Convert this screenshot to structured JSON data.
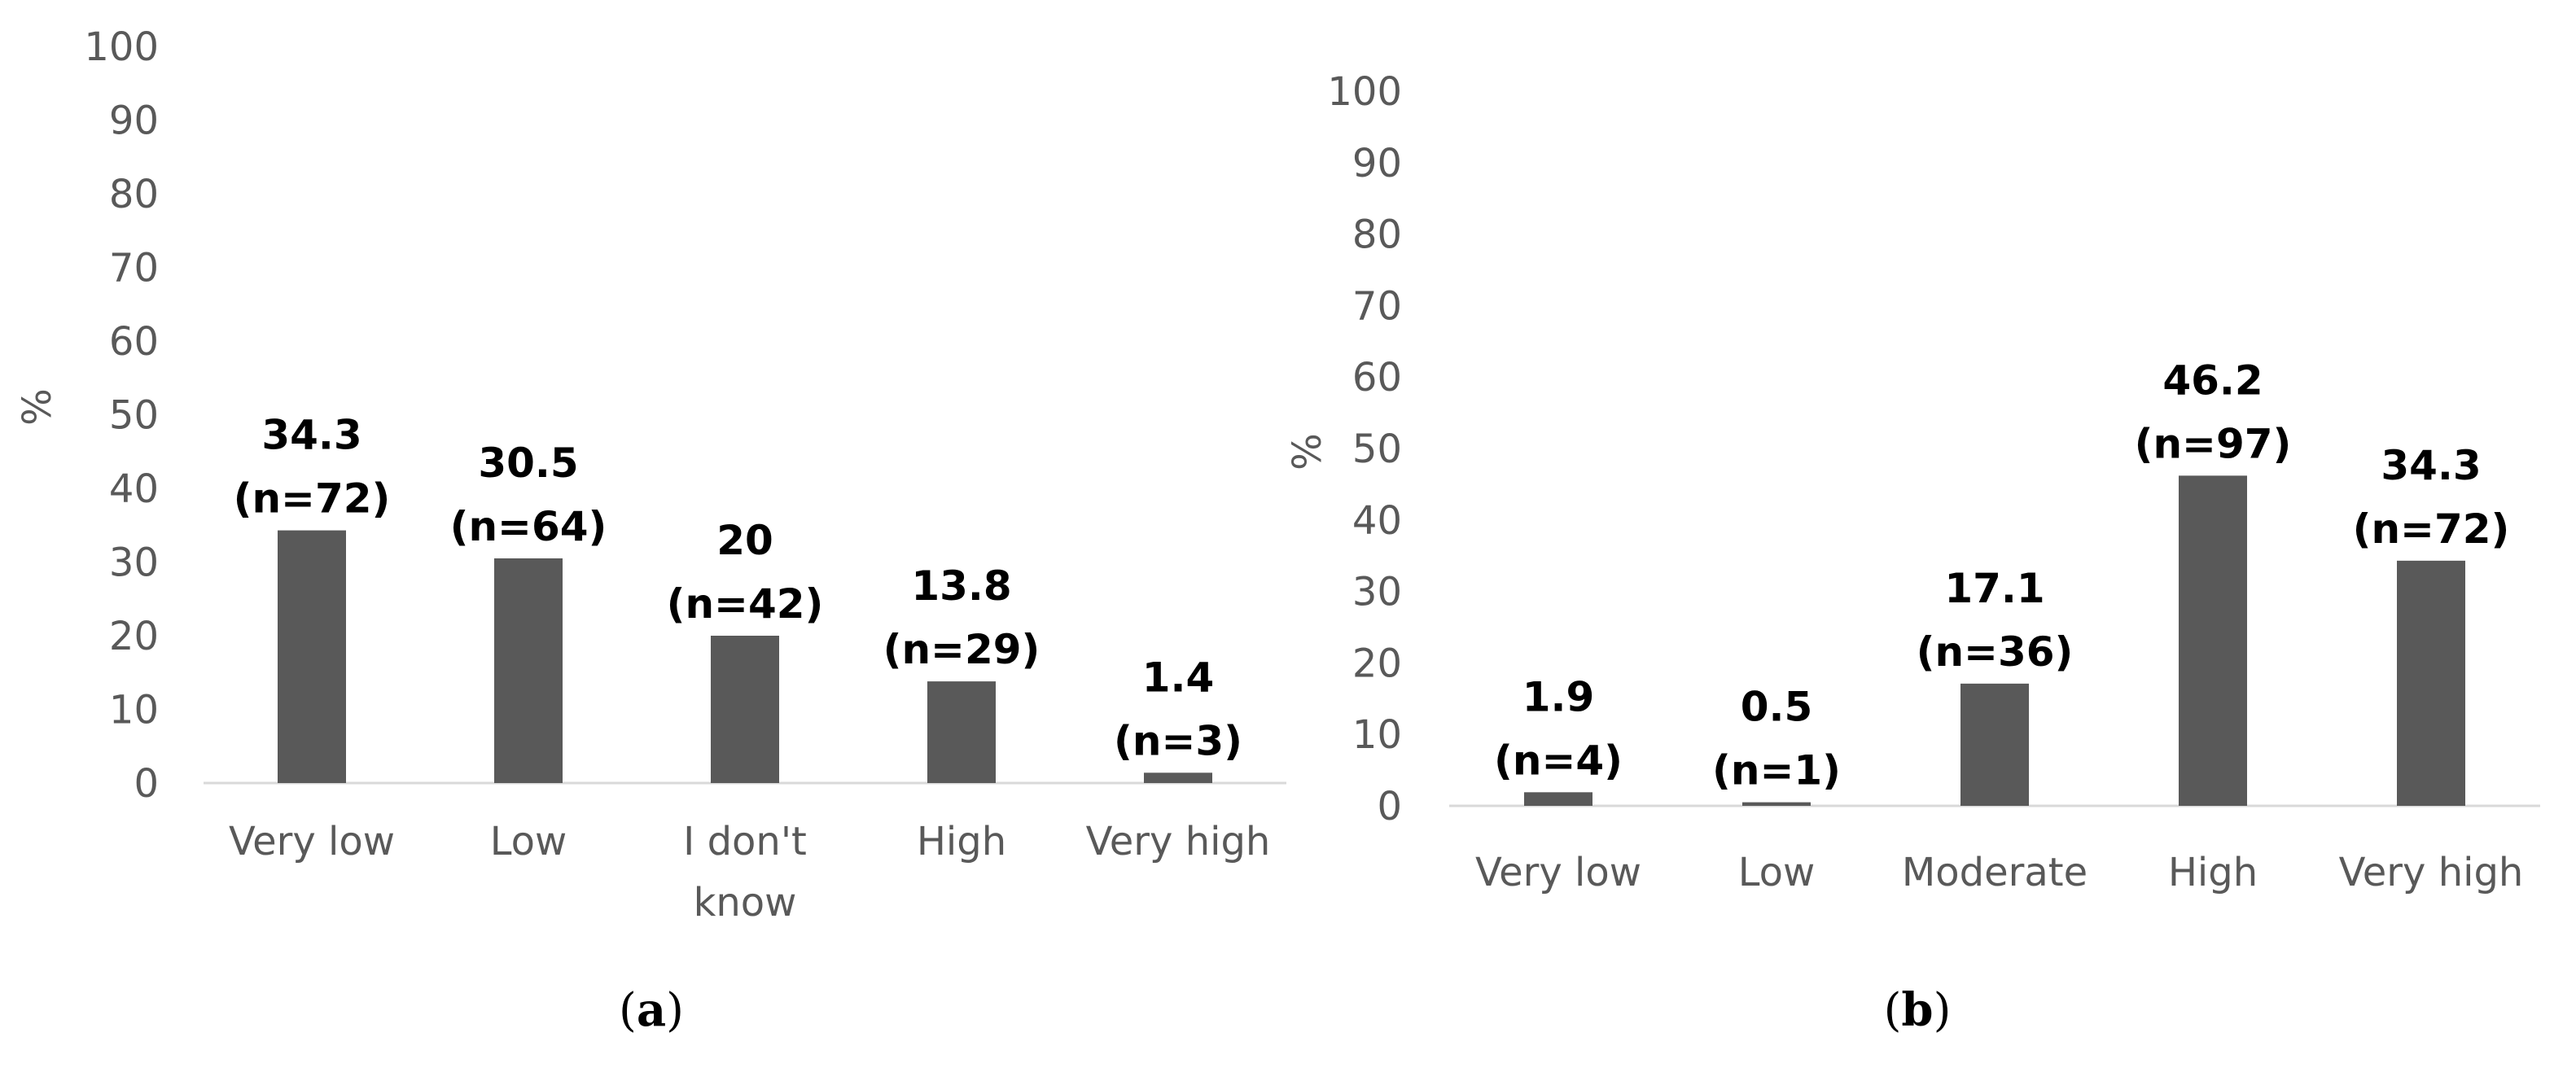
{
  "chart_data": [
    {
      "type": "bar",
      "panel_label": "a",
      "ylabel": "%",
      "ylim": [
        0,
        100
      ],
      "yticks": [
        "0",
        "10",
        "20",
        "30",
        "40",
        "50",
        "60",
        "70",
        "80",
        "90",
        "100"
      ],
      "categories": [
        "Very low",
        "Low",
        "I don't know",
        "High",
        "Very high"
      ],
      "values": [
        34.3,
        30.5,
        20,
        13.8,
        1.4
      ],
      "value_labels": [
        "34.3",
        "30.5",
        "20",
        "13.8",
        "1.4"
      ],
      "count_labels": [
        "(n=72)",
        "(n=64)",
        "(n=42)",
        "(n=29)",
        "(n=3)"
      ],
      "bar_color": "#595959",
      "grid": false
    },
    {
      "type": "bar",
      "panel_label": "b",
      "ylabel": "%",
      "ylim": [
        0,
        100
      ],
      "yticks": [
        "0",
        "10",
        "20",
        "30",
        "40",
        "50",
        "60",
        "70",
        "80",
        "90",
        "100"
      ],
      "categories": [
        "Very low",
        "Low",
        "Moderate",
        "High",
        "Very high"
      ],
      "values": [
        1.9,
        0.5,
        17.1,
        46.2,
        34.3
      ],
      "value_labels": [
        "1.9",
        "0.5",
        "17.1",
        "46.2",
        "34.3"
      ],
      "count_labels": [
        "(n=4)",
        "(n=1)",
        "(n=36)",
        "(n=97)",
        "(n=72)"
      ],
      "bar_color": "#595959",
      "grid": false
    }
  ]
}
